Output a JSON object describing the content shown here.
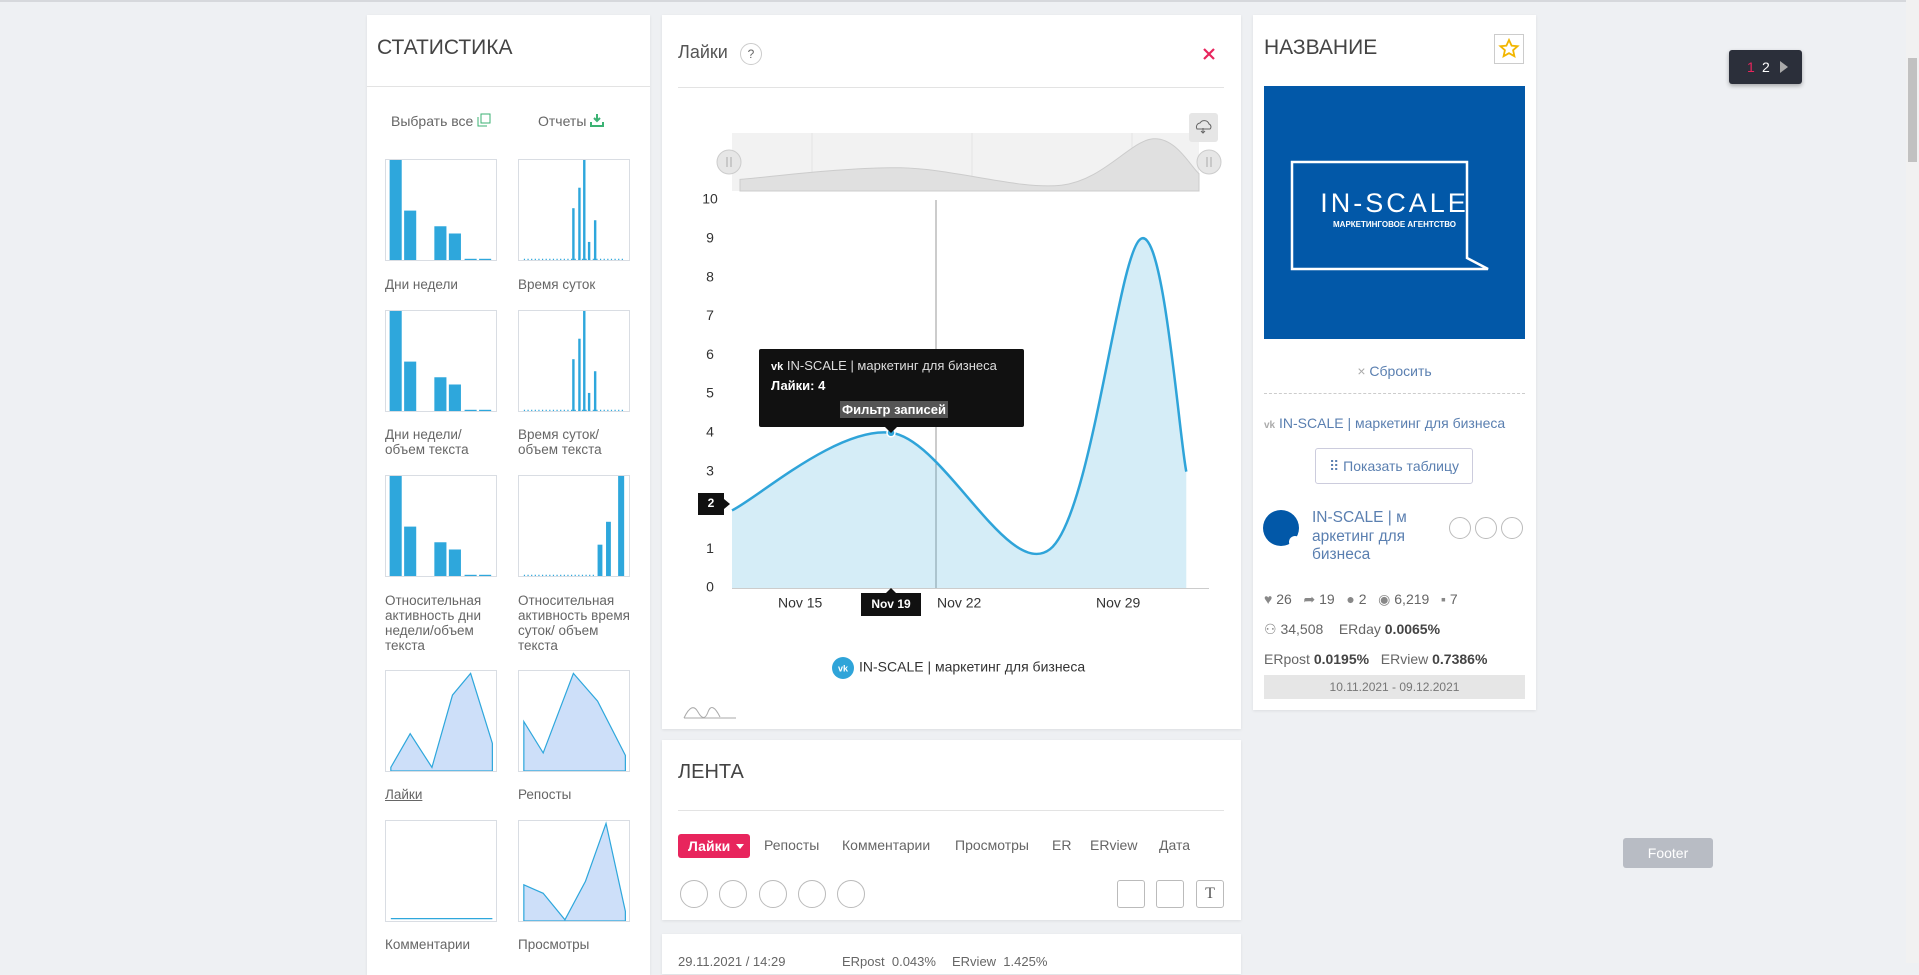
{
  "left_panel": {
    "title": "СТАТИСТИКА",
    "select_all": "Выбрать все",
    "reports": "Отчеты",
    "thumbnails": [
      "Дни недели",
      "Время суток",
      "Дни недели/ объем текста",
      "Время суток/ объем текста",
      "Относительная активность дни недели/объем текста",
      "Относительная активность время суток/ объем текста",
      "Лайки",
      "Репосты",
      "Комментарии",
      "Просмотры"
    ]
  },
  "chart_panel": {
    "help": "?"
  },
  "chart_data": {
    "type": "line",
    "title": "Лайки",
    "x": [
      "Nov 12",
      "Nov 19",
      "Nov 26",
      "Nov 30",
      "Dec 2"
    ],
    "series": [
      {
        "name": "IN-SCALE | маркетинг для бизнеса",
        "color": "#2fa4d9",
        "values": [
          2,
          4,
          1,
          9,
          3
        ]
      }
    ],
    "xlim": [
      "Nov 12",
      "Dec 3"
    ],
    "xticks": [
      "Nov 15",
      "Nov 22",
      "Nov 29"
    ],
    "ylim": [
      0,
      10
    ],
    "yticks": [
      0,
      1,
      2,
      3,
      4,
      5,
      6,
      7,
      8,
      9,
      10
    ],
    "grid": false,
    "tooltip": {
      "title": "IN-SCALE | маркетинг для бизнеса",
      "text": "Лайки: 4",
      "button": "Фильтр записей"
    },
    "crosshair_x_label": "Nov 19",
    "crosshair_y_label": "2"
  },
  "right_panel": {
    "title": "НАЗВАНИЕ",
    "logo_title": "IN-SCALE",
    "logo_subtitle": "МАРКЕТИНГОВОЕ АГЕНТСТВО",
    "reset": "Сбросить",
    "group_link": "IN-SCALE | маркетинг для бизнеса",
    "show_table": "Показать таблицу",
    "group_name": "IN-SCALE | маркетинг для бизнеса",
    "stats": {
      "likes": "26",
      "reposts": "19",
      "comments": "2",
      "views": "6,219",
      "posts": "7",
      "members": "34,508",
      "erday_label": "ERday",
      "erday": "0.0065%",
      "erpost_label": "ERpost",
      "erpost": "0.0195%",
      "erview_label": "ERview",
      "erview": "0.7386%"
    },
    "period": "10.11.2021 - 09.12.2021"
  },
  "feed": {
    "title": "ЛЕНТА",
    "tabs": [
      "Лайки",
      "Репосты",
      "Комментарии",
      "Просмотры",
      "ER",
      "ERview",
      "Дата"
    ]
  },
  "post": {
    "date": "29.11.2021 / 14:29",
    "erpost": "ERpost  0.043%",
    "erview": "ERview  1.425%"
  },
  "pagination": [
    "1",
    "2"
  ],
  "footer": "Footer"
}
